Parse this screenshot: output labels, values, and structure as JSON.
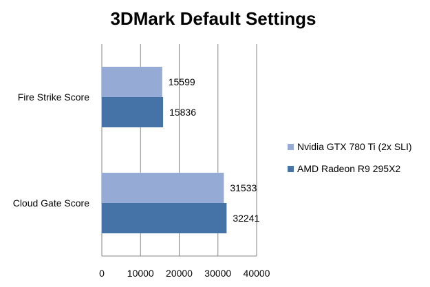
{
  "chart_data": {
    "type": "bar",
    "orientation": "horizontal",
    "title": "3DMark Default Settings",
    "xlabel": "",
    "ylabel": "",
    "categories": [
      "Fire Strike Score",
      "Cloud Gate Score"
    ],
    "series": [
      {
        "name": "Nvidia GTX 780 Ti (2x SLI)",
        "values": [
          15599,
          31533
        ],
        "color": "#95abd5"
      },
      {
        "name": "AMD Radeon R9 295X2",
        "values": [
          15836,
          32241
        ],
        "color": "#4573a8"
      }
    ],
    "xlim": [
      0,
      40000
    ],
    "xticks": [
      0,
      10000,
      20000,
      30000,
      40000
    ],
    "grid": true,
    "legend_position": "right",
    "data_labels": true
  }
}
